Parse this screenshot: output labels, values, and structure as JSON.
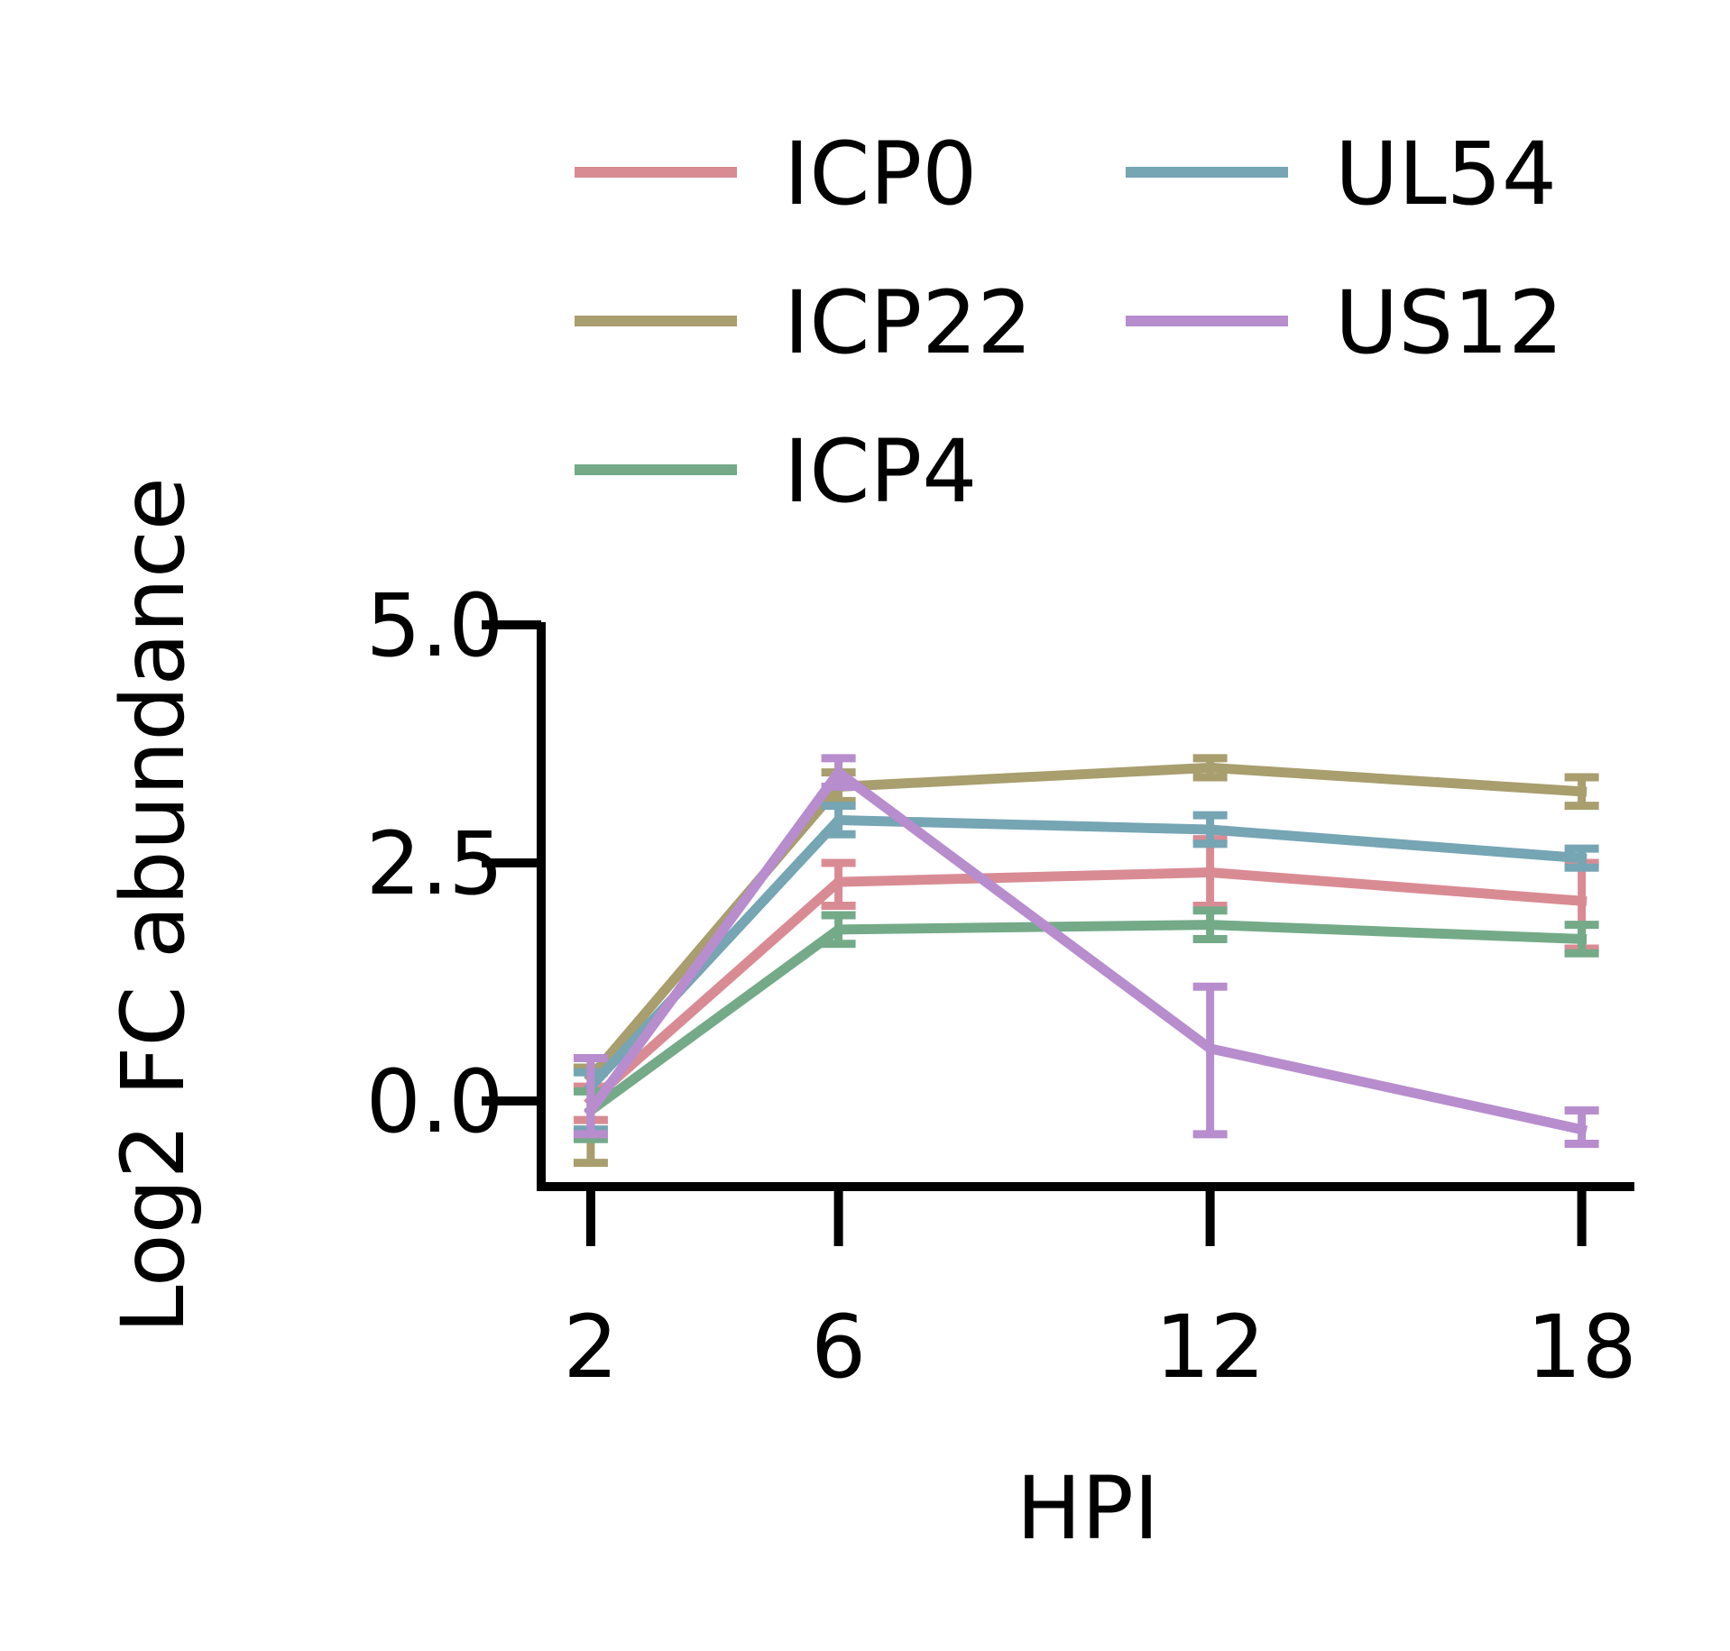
{
  "chart_data": {
    "type": "line",
    "title": "",
    "xlabel": "HPI",
    "ylabel": "Log2 FC abundance",
    "x": [
      2,
      6,
      12,
      18
    ],
    "x_tick_labels": [
      "2",
      "6",
      "12",
      "18"
    ],
    "xlim": [
      1.2,
      18.85
    ],
    "ylim": [
      -0.9,
      5.0
    ],
    "y_ticks": [
      0.0,
      2.5,
      5.0
    ],
    "y_tick_labels": [
      "0.0",
      "2.5",
      "5.0"
    ],
    "grid": false,
    "legend": {
      "placement": "top",
      "columns": 2
    },
    "error_bars": true,
    "series": [
      {
        "name": "ICP0",
        "color": "#d98b94",
        "values": [
          0.0,
          2.3,
          2.4,
          2.1
        ],
        "err_low": [
          -0.2,
          2.05,
          2.05,
          1.6
        ],
        "err_high": [
          0.15,
          2.5,
          2.75,
          2.5
        ]
      },
      {
        "name": "ICP22",
        "color": "#a89e6e",
        "values": [
          0.25,
          3.3,
          3.5,
          3.25
        ],
        "err_low": [
          -0.65,
          3.15,
          3.4,
          3.1
        ],
        "err_high": [
          0.35,
          3.45,
          3.6,
          3.4
        ]
      },
      {
        "name": "ICP4",
        "color": "#74aa88",
        "values": [
          -0.1,
          1.8,
          1.85,
          1.7
        ],
        "err_low": [
          -0.4,
          1.65,
          1.7,
          1.55
        ],
        "err_high": [
          0.1,
          1.95,
          2.0,
          1.85
        ]
      },
      {
        "name": "UL54",
        "color": "#76a5b4",
        "values": [
          0.15,
          2.95,
          2.85,
          2.55
        ],
        "err_low": [
          -0.3,
          2.8,
          2.7,
          2.45
        ],
        "err_high": [
          0.3,
          3.1,
          3.0,
          2.65
        ]
      },
      {
        "name": "US12",
        "color": "#b78dcd",
        "values": [
          -0.1,
          3.45,
          0.55,
          -0.3
        ],
        "err_low": [
          -0.35,
          3.3,
          -0.35,
          -0.45
        ],
        "err_high": [
          0.45,
          3.6,
          1.2,
          -0.1
        ]
      }
    ]
  }
}
